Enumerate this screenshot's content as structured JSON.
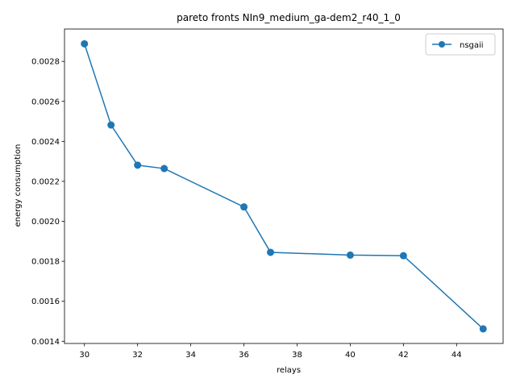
{
  "chart_data": {
    "type": "line",
    "title": "pareto fronts NIn9_medium_ga-dem2_r40_1_0",
    "xlabel": "relays",
    "ylabel": "energy consumption",
    "xlim": [
      29.25,
      45.75
    ],
    "ylim": [
      0.001389,
      0.002962
    ],
    "xticks": [
      30,
      32,
      34,
      36,
      38,
      40,
      42,
      44
    ],
    "yticks": [
      0.0014,
      0.0016,
      0.0018,
      0.002,
      0.0022,
      0.0024,
      0.0026,
      0.0028
    ],
    "xtick_labels": [
      "30",
      "32",
      "34",
      "36",
      "38",
      "40",
      "42",
      "44"
    ],
    "ytick_labels": [
      "0.0014",
      "0.0016",
      "0.0018",
      "0.0020",
      "0.0022",
      "0.0024",
      "0.0026",
      "0.0028"
    ],
    "grid": false,
    "legend": {
      "placement": "top-right"
    },
    "series": [
      {
        "name": "nsgaii",
        "color": "#1f77b4",
        "marker": "circle",
        "x": [
          30,
          31,
          32,
          33,
          36,
          37,
          40,
          42,
          45
        ],
        "y": [
          0.002888,
          0.002482,
          0.002281,
          0.002264,
          0.002072,
          0.001845,
          0.001831,
          0.001828,
          0.001462
        ]
      }
    ]
  }
}
